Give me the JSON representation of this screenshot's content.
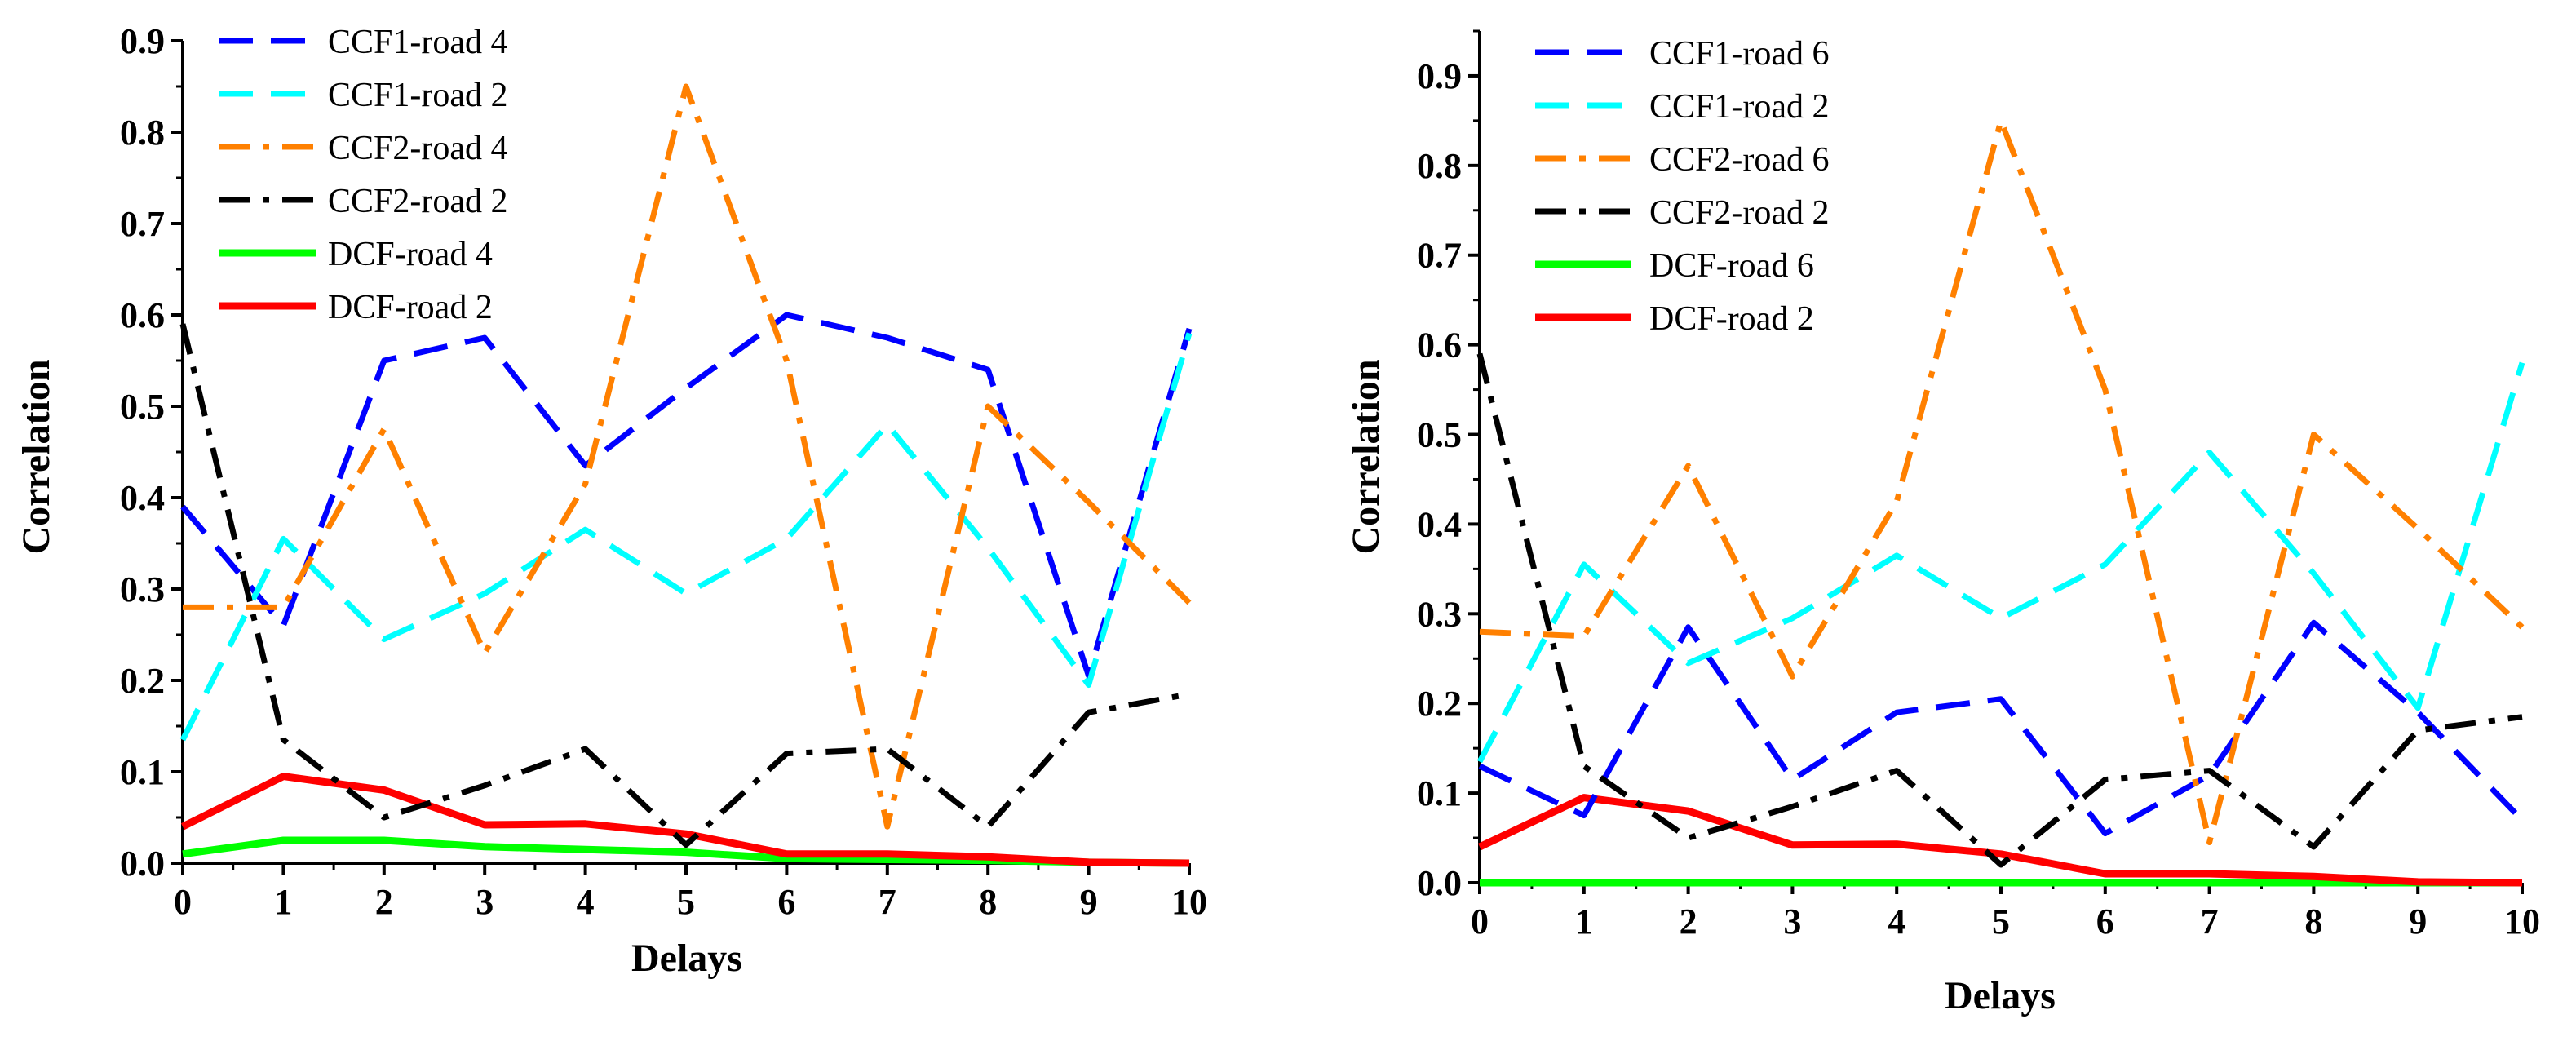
{
  "chart_data": [
    {
      "type": "line",
      "xlabel": "Delays",
      "ylabel": "Correlation",
      "x": [
        0,
        1,
        2,
        3,
        4,
        5,
        6,
        7,
        8,
        9,
        10
      ],
      "xlim": [
        0,
        10
      ],
      "ylim": [
        0,
        0.9
      ],
      "yticks": [
        0.0,
        0.1,
        0.2,
        0.3,
        0.4,
        0.5,
        0.6,
        0.7,
        0.8,
        0.9
      ],
      "ytick_labels": [
        "0.0",
        "0.1",
        "0.2",
        "0.3",
        "0.4",
        "0.5",
        "0.6",
        "0.7",
        "0.8",
        "0.9"
      ],
      "xtick_labels": [
        "0",
        "1",
        "2",
        "3",
        "4",
        "5",
        "6",
        "7",
        "8",
        "9",
        "10"
      ],
      "legend_position": "top-left",
      "series": [
        {
          "name": "CCF1-road 4",
          "color": "#0000ff",
          "style": "dash",
          "values": [
            0.39,
            0.26,
            0.55,
            0.575,
            0.435,
            0.52,
            0.6,
            0.575,
            0.54,
            0.205,
            0.585
          ]
        },
        {
          "name": "CCF1-road 2",
          "color": "#00ffff",
          "style": "dash",
          "values": [
            0.135,
            0.355,
            0.245,
            0.295,
            0.365,
            0.295,
            0.355,
            0.48,
            0.345,
            0.195,
            0.58
          ]
        },
        {
          "name": "CCF2-road 4",
          "color": "#ff8000",
          "style": "dashdot",
          "values": [
            0.28,
            0.28,
            0.475,
            0.23,
            0.415,
            0.85,
            0.55,
            0.04,
            0.5,
            0.395,
            0.285
          ]
        },
        {
          "name": "CCF2-road 2",
          "color": "#000000",
          "style": "dashdot",
          "values": [
            0.59,
            0.135,
            0.05,
            0.085,
            0.125,
            0.02,
            0.12,
            0.125,
            0.04,
            0.165,
            0.185
          ]
        },
        {
          "name": "DCF-road 4",
          "color": "#00ff00",
          "style": "solid",
          "values": [
            0.01,
            0.025,
            0.025,
            0.018,
            0.015,
            0.012,
            0.005,
            0.004,
            0.003,
            0.001,
            0.0
          ]
        },
        {
          "name": "DCF-road 2",
          "color": "#ff0000",
          "style": "solid",
          "values": [
            0.04,
            0.095,
            0.08,
            0.042,
            0.043,
            0.032,
            0.01,
            0.01,
            0.007,
            0.001,
            0.0
          ]
        }
      ]
    },
    {
      "type": "line",
      "xlabel": "Delays",
      "ylabel": "Correlation",
      "x": [
        0,
        1,
        2,
        3,
        4,
        5,
        6,
        7,
        8,
        9,
        10
      ],
      "xlim": [
        0,
        10
      ],
      "ylim": [
        0,
        0.95
      ],
      "yticks": [
        0.0,
        0.1,
        0.2,
        0.3,
        0.4,
        0.5,
        0.6,
        0.7,
        0.8,
        0.9
      ],
      "ytick_labels": [
        "0.0",
        "0.1",
        "0.2",
        "0.3",
        "0.4",
        "0.5",
        "0.6",
        "0.7",
        "0.8",
        "0.9"
      ],
      "xtick_labels": [
        "0",
        "1",
        "2",
        "3",
        "4",
        "5",
        "6",
        "7",
        "8",
        "9",
        "10"
      ],
      "legend_position": "top-left",
      "series": [
        {
          "name": "CCF1-road 6",
          "color": "#0000ff",
          "style": "dash",
          "values": [
            0.13,
            0.075,
            0.285,
            0.115,
            0.19,
            0.205,
            0.055,
            0.12,
            0.29,
            0.19,
            0.07
          ]
        },
        {
          "name": "CCF1-road 2",
          "color": "#00ffff",
          "style": "dash",
          "values": [
            0.135,
            0.355,
            0.245,
            0.295,
            0.365,
            0.295,
            0.355,
            0.48,
            0.345,
            0.195,
            0.58
          ]
        },
        {
          "name": "CCF2-road 6",
          "color": "#ff8000",
          "style": "dashdot",
          "values": [
            0.28,
            0.275,
            0.465,
            0.23,
            0.425,
            0.85,
            0.55,
            0.045,
            0.5,
            0.395,
            0.285
          ]
        },
        {
          "name": "CCF2-road 2",
          "color": "#000000",
          "style": "dashdot",
          "values": [
            0.59,
            0.13,
            0.05,
            0.085,
            0.125,
            0.02,
            0.115,
            0.125,
            0.04,
            0.17,
            0.185
          ]
        },
        {
          "name": "DCF-road 6",
          "color": "#00ff00",
          "style": "solid",
          "values": [
            0.0,
            0.0,
            0.0,
            0.0,
            0.0,
            0.0,
            0.0,
            0.0,
            0.0,
            0.0,
            0.0
          ]
        },
        {
          "name": "DCF-road 2",
          "color": "#ff0000",
          "style": "solid",
          "values": [
            0.04,
            0.095,
            0.08,
            0.042,
            0.043,
            0.032,
            0.01,
            0.01,
            0.007,
            0.001,
            0.0
          ]
        }
      ]
    }
  ]
}
